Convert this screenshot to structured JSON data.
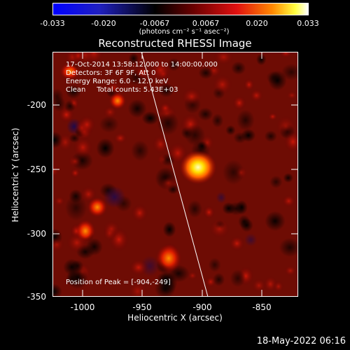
{
  "colorbar": {
    "ticks": [
      "-0.033",
      "-0.020",
      "-0.0067",
      "0.0067",
      "0.020",
      "0.033"
    ],
    "unit_text": "(photons cm⁻² s⁻¹ asec⁻²)"
  },
  "title": "Reconstructed RHESSI Image",
  "info": {
    "time_range": "17-Oct-2014 13:58:12.000 to 14:00:00.000",
    "detectors": "Detectors: 3F 6F 9F, Att 0",
    "energy_range": "Energy Range: 6.0 - 12.0 keV",
    "clean_counts": "Clean     Total counts: 5.43E+03"
  },
  "peak_text": "Position of Peak = [-904,-249]",
  "axes": {
    "x_label": "Heliocentric X (arcsec)",
    "y_label": "Heliocentric Y (arcsec)",
    "x_ticks": [
      "-1000",
      "-950",
      "-900",
      "-850"
    ],
    "y_ticks": [
      "-200",
      "-250",
      "-300",
      "-350"
    ]
  },
  "footer_date": "18-May-2022 06:16",
  "colors": {
    "colormap_low": "#0000ff",
    "colormap_mid": "#000000",
    "colormap_high": "#ffffff",
    "limb_line": "#ffffff"
  }
}
